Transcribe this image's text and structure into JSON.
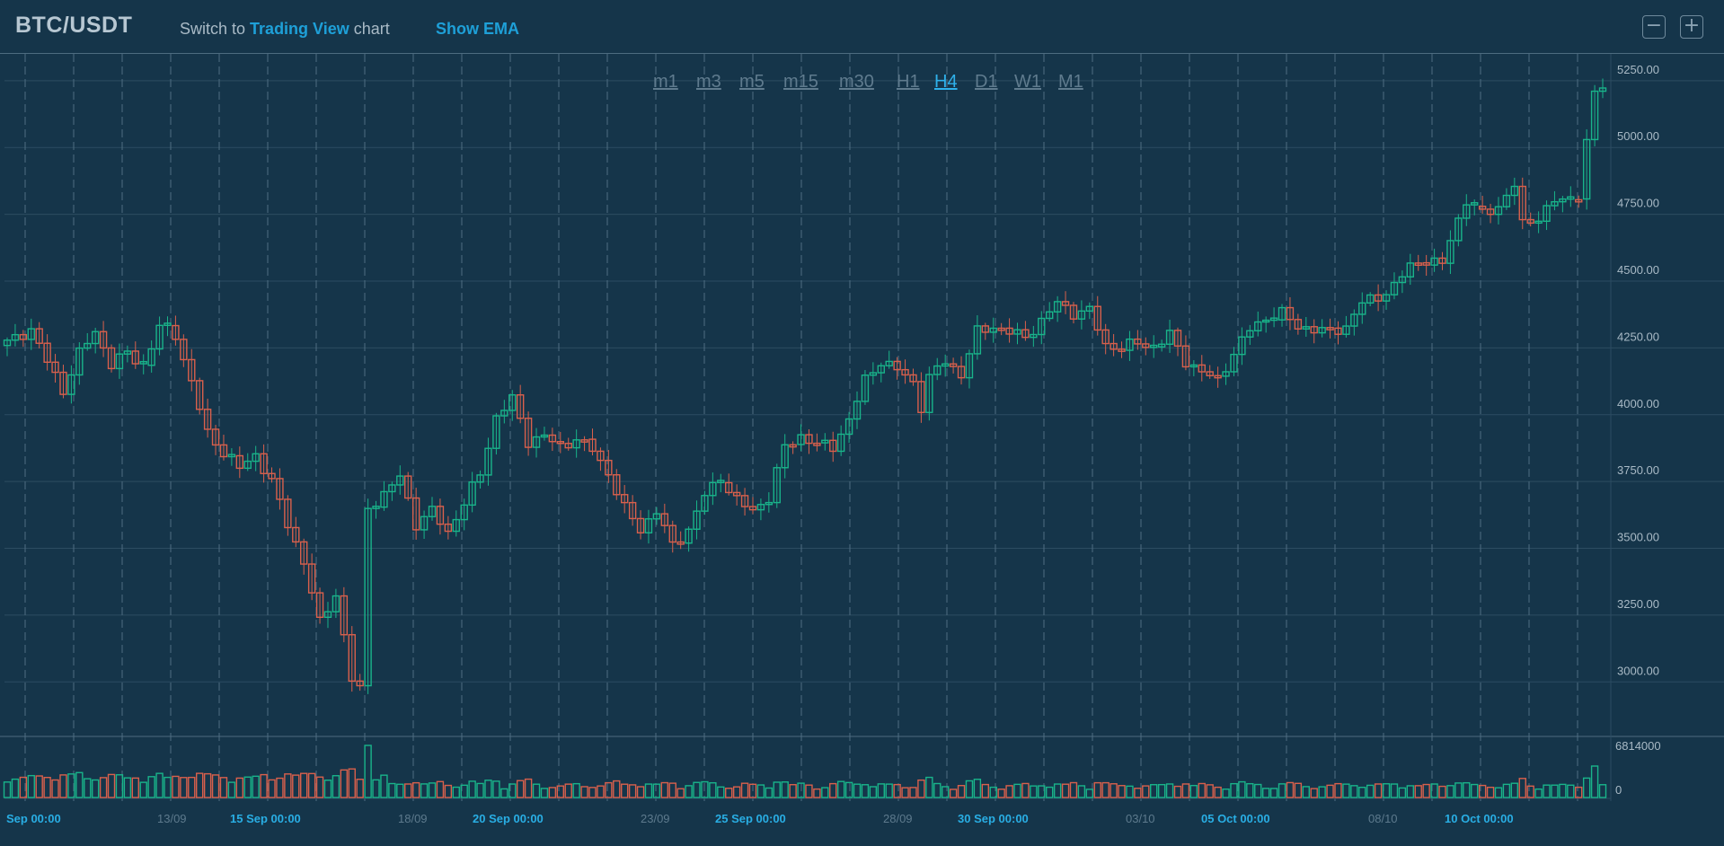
{
  "header": {
    "pair": "BTC/USDT",
    "switch_prefix": "Switch to",
    "switch_link": "Trading View",
    "switch_suffix": "chart",
    "ema_label": "Show EMA",
    "zoom_out_icon": "minus-box-icon",
    "zoom_in_icon": "plus-box-icon"
  },
  "timeframes": [
    "m1",
    "m3",
    "m5",
    "m15",
    "m30",
    "H1",
    "H4",
    "D1",
    "W1",
    "M1"
  ],
  "active_timeframe": "H4",
  "colors": {
    "background": "#15354a",
    "up": "#19b48a",
    "down": "#d9604c",
    "grid": "#3a5a70",
    "accent": "#1ea0d8",
    "axis_text": "#a9bac6"
  },
  "chart_data": {
    "type": "candlestick",
    "title": "BTC/USDT",
    "interval": "H4",
    "y_axis": {
      "ticks": [
        "5250.00",
        "5000.00",
        "4750.00",
        "4500.00",
        "4250.00",
        "4000.00",
        "3750.00",
        "3500.00",
        "3250.00",
        "3000.00"
      ],
      "range": [
        2880,
        5310
      ]
    },
    "volume_axis": {
      "ticks": [
        "6814000",
        "0"
      ],
      "max": 6814000
    },
    "x_axis": {
      "labels": [
        {
          "text": "Sep 00:00",
          "major": true
        },
        {
          "text": "13/09",
          "major": false
        },
        {
          "text": "15 Sep 00:00",
          "major": true
        },
        {
          "text": "18/09",
          "major": false
        },
        {
          "text": "20 Sep 00:00",
          "major": true
        },
        {
          "text": "23/09",
          "major": false
        },
        {
          "text": "25 Sep 00:00",
          "major": true
        },
        {
          "text": "28/09",
          "major": false
        },
        {
          "text": "30 Sep 00:00",
          "major": true
        },
        {
          "text": "03/10",
          "major": false
        },
        {
          "text": "05 Oct 00:00",
          "major": true
        },
        {
          "text": "08/10",
          "major": false
        },
        {
          "text": "10 Oct 00:00",
          "major": true
        }
      ]
    },
    "price_path": [
      [
        0,
        4270
      ],
      [
        3,
        4320
      ],
      [
        5,
        4200
      ],
      [
        7,
        4090
      ],
      [
        9,
        4230
      ],
      [
        11,
        4310
      ],
      [
        13,
        4190
      ],
      [
        15,
        4230
      ],
      [
        17,
        4180
      ],
      [
        19,
        4330
      ],
      [
        21,
        4300
      ],
      [
        23,
        4120
      ],
      [
        25,
        3930
      ],
      [
        27,
        3860
      ],
      [
        29,
        3800
      ],
      [
        31,
        3850
      ],
      [
        33,
        3750
      ],
      [
        35,
        3590
      ],
      [
        37,
        3450
      ],
      [
        39,
        3220
      ],
      [
        41,
        3330
      ],
      [
        43,
        3010
      ],
      [
        44,
        2970
      ],
      [
        45,
        3650
      ],
      [
        47,
        3700
      ],
      [
        49,
        3770
      ],
      [
        51,
        3590
      ],
      [
        53,
        3640
      ],
      [
        55,
        3560
      ],
      [
        57,
        3670
      ],
      [
        59,
        3780
      ],
      [
        61,
        3990
      ],
      [
        63,
        4060
      ],
      [
        65,
        3900
      ],
      [
        67,
        3920
      ],
      [
        69,
        3880
      ],
      [
        71,
        3910
      ],
      [
        73,
        3870
      ],
      [
        75,
        3780
      ],
      [
        77,
        3650
      ],
      [
        79,
        3570
      ],
      [
        81,
        3640
      ],
      [
        83,
        3510
      ],
      [
        85,
        3570
      ],
      [
        87,
        3700
      ],
      [
        89,
        3760
      ],
      [
        91,
        3680
      ],
      [
        93,
        3640
      ],
      [
        95,
        3690
      ],
      [
        97,
        3880
      ],
      [
        99,
        3920
      ],
      [
        101,
        3890
      ],
      [
        103,
        3880
      ],
      [
        105,
        3980
      ],
      [
        107,
        4130
      ],
      [
        109,
        4200
      ],
      [
        111,
        4170
      ],
      [
        113,
        4120
      ],
      [
        114,
        4030
      ],
      [
        115,
        4140
      ],
      [
        117,
        4200
      ],
      [
        119,
        4150
      ],
      [
        121,
        4310
      ],
      [
        123,
        4330
      ],
      [
        125,
        4310
      ],
      [
        127,
        4290
      ],
      [
        129,
        4350
      ],
      [
        131,
        4420
      ],
      [
        133,
        4380
      ],
      [
        135,
        4390
      ],
      [
        137,
        4260
      ],
      [
        139,
        4250
      ],
      [
        141,
        4270
      ],
      [
        143,
        4250
      ],
      [
        145,
        4300
      ],
      [
        147,
        4200
      ],
      [
        149,
        4160
      ],
      [
        151,
        4130
      ],
      [
        153,
        4230
      ],
      [
        155,
        4320
      ],
      [
        157,
        4360
      ],
      [
        159,
        4380
      ],
      [
        161,
        4330
      ],
      [
        163,
        4320
      ],
      [
        165,
        4310
      ],
      [
        167,
        4330
      ],
      [
        169,
        4420
      ],
      [
        171,
        4440
      ],
      [
        173,
        4480
      ],
      [
        175,
        4560
      ],
      [
        177,
        4580
      ],
      [
        179,
        4560
      ],
      [
        180,
        4660
      ],
      [
        182,
        4800
      ],
      [
        184,
        4750
      ],
      [
        186,
        4780
      ],
      [
        188,
        4860
      ],
      [
        189,
        4710
      ],
      [
        191,
        4740
      ],
      [
        193,
        4800
      ],
      [
        195,
        4800
      ],
      [
        196,
        4830
      ],
      [
        197,
        5020
      ],
      [
        198,
        5200
      ],
      [
        199,
        5230
      ]
    ]
  }
}
